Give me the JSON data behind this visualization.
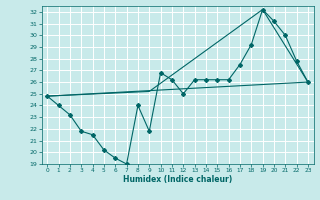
{
  "xlabel": "Humidex (Indice chaleur)",
  "ylabel": "",
  "xlim": [
    -0.5,
    23.5
  ],
  "ylim": [
    19,
    32.5
  ],
  "yticks": [
    19,
    20,
    21,
    22,
    23,
    24,
    25,
    26,
    27,
    28,
    29,
    30,
    31,
    32
  ],
  "xticks": [
    0,
    1,
    2,
    3,
    4,
    5,
    6,
    7,
    8,
    9,
    10,
    11,
    12,
    13,
    14,
    15,
    16,
    17,
    18,
    19,
    20,
    21,
    22,
    23
  ],
  "background_color": "#c8eaea",
  "grid_color": "#b0d8d8",
  "line_color": "#006666",
  "line1_x": [
    0,
    1,
    2,
    3,
    4,
    5,
    6,
    7,
    8,
    9,
    10,
    11,
    12,
    13,
    14,
    15,
    16,
    17,
    18,
    19,
    20,
    21,
    22,
    23
  ],
  "line1_y": [
    24.8,
    24.0,
    23.2,
    21.8,
    21.5,
    20.2,
    19.5,
    19.0,
    24.0,
    21.8,
    26.8,
    26.2,
    25.0,
    26.2,
    26.2,
    26.2,
    26.2,
    27.5,
    29.2,
    32.2,
    31.2,
    30.0,
    27.8,
    26.0
  ],
  "line2_x": [
    0,
    23
  ],
  "line2_y": [
    24.8,
    26.0
  ],
  "line3_x": [
    0,
    9,
    19,
    23
  ],
  "line3_y": [
    24.8,
    25.2,
    32.2,
    26.0
  ]
}
